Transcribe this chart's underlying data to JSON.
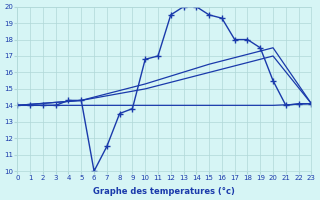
{
  "xlabel": "Graphe des temperatures (°c)",
  "bg_color": "#d6f5f5",
  "line_color": "#1a3aab",
  "grid_color": "#b0d8d8",
  "xlim": [
    0,
    23
  ],
  "ylim": [
    10,
    20
  ],
  "xticks": [
    0,
    1,
    2,
    3,
    4,
    5,
    6,
    7,
    8,
    9,
    10,
    11,
    12,
    13,
    14,
    15,
    16,
    17,
    18,
    19,
    20,
    21,
    22,
    23
  ],
  "yticks": [
    10,
    11,
    12,
    13,
    14,
    15,
    16,
    17,
    18,
    19,
    20
  ],
  "line1_x": [
    0,
    1,
    2,
    3,
    4,
    5,
    6,
    7,
    8,
    9,
    10,
    11,
    12,
    13,
    14,
    15,
    16,
    17,
    18,
    19,
    20,
    21,
    22,
    23
  ],
  "line1_y": [
    14,
    14,
    14,
    14,
    14.3,
    14.3,
    10,
    11.5,
    13.5,
    13.8,
    16.8,
    17,
    19.5,
    20,
    20,
    19.5,
    19.3,
    18,
    18,
    17.5,
    15.5,
    14,
    14.1,
    14.1
  ],
  "line2_x": [
    0,
    5,
    10,
    15,
    20,
    23
  ],
  "line2_y": [
    14,
    14.3,
    15.3,
    16.5,
    17.5,
    14.1
  ],
  "line3_x": [
    0,
    5,
    10,
    15,
    20,
    23
  ],
  "line3_y": [
    14,
    14.3,
    15.0,
    16.0,
    17.0,
    14.1
  ],
  "line4_x": [
    0,
    10,
    20,
    23
  ],
  "line4_y": [
    14,
    14,
    14,
    14.1
  ]
}
